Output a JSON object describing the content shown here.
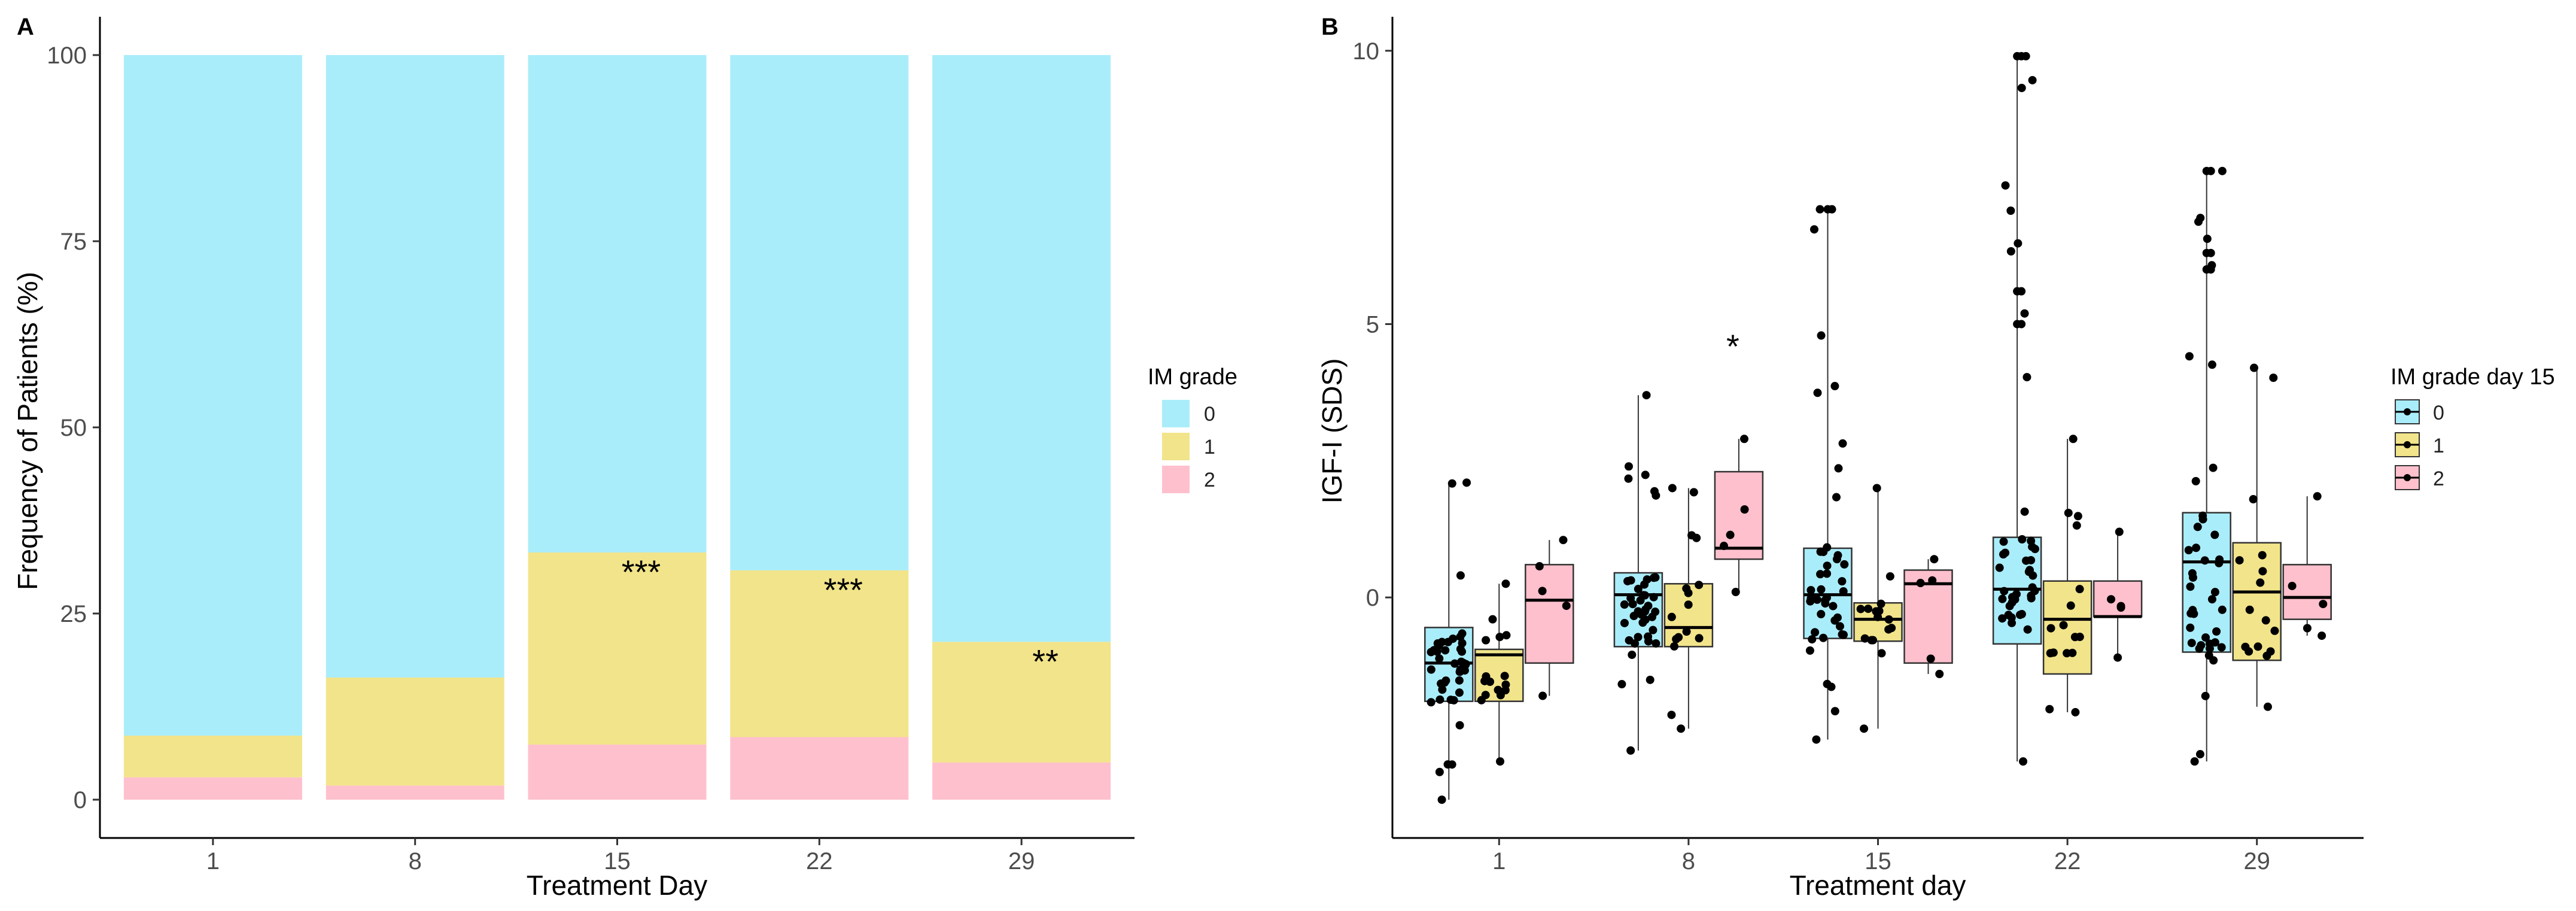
{
  "colors": {
    "grade0": "#aaedfa",
    "grade1": "#f2e48a",
    "grade2": "#ffc0cd",
    "point": "#000000"
  },
  "chart_data": [
    {
      "panel": "A",
      "type": "bar",
      "stacked": true,
      "xlabel": "Treatment Day",
      "ylabel": "Frequency of Patients (%)",
      "ylim": [
        0,
        100
      ],
      "yticks": [
        "0",
        "25",
        "50",
        "75",
        "100"
      ],
      "categories": [
        "1",
        "8",
        "15",
        "22",
        "29"
      ],
      "legend_title": "IM grade",
      "series": [
        {
          "name": "0",
          "values": [
            91.4,
            83.6,
            66.8,
            69.2,
            78.8
          ]
        },
        {
          "name": "1",
          "values": [
            5.6,
            14.5,
            25.8,
            22.4,
            16.2
          ]
        },
        {
          "name": "2",
          "values": [
            3.0,
            1.9,
            7.4,
            8.4,
            5.0
          ]
        }
      ],
      "annotations": [
        "",
        "",
        "***",
        "***",
        "**"
      ]
    },
    {
      "panel": "B",
      "type": "boxplot",
      "xlabel": "Treatment day",
      "ylabel": "IGF-I (SDS)",
      "ylim": [
        -4.4,
        10.6
      ],
      "yticks": [
        "0",
        "5",
        "10"
      ],
      "categories": [
        "1",
        "8",
        "15",
        "22",
        "29"
      ],
      "legend_title": "IM grade day 15",
      "groups": [
        "0",
        "1",
        "2"
      ],
      "boxes": [
        {
          "day": "1",
          "group": "0",
          "q1": -1.9,
          "median": -1.2,
          "q3": -0.55,
          "min": -3.7,
          "max": 2.1
        },
        {
          "day": "1",
          "group": "1",
          "q1": -1.9,
          "median": -1.05,
          "q3": -0.95,
          "min": -3.0,
          "max": 0.25
        },
        {
          "day": "1",
          "group": "2",
          "q1": -1.2,
          "median": -0.05,
          "q3": 0.6,
          "min": -1.8,
          "max": 1.05
        },
        {
          "day": "8",
          "group": "0",
          "q1": -0.9,
          "median": 0.05,
          "q3": 0.45,
          "min": -2.8,
          "max": 3.7
        },
        {
          "day": "8",
          "group": "1",
          "q1": -0.9,
          "median": -0.55,
          "q3": 0.25,
          "min": -2.4,
          "max": 2.0
        },
        {
          "day": "8",
          "group": "2",
          "q1": 0.7,
          "median": 0.9,
          "q3": 2.3,
          "min": 0.1,
          "max": 2.9
        },
        {
          "day": "15",
          "group": "0",
          "q1": -0.75,
          "median": 0.05,
          "q3": 0.9,
          "min": -2.6,
          "max": 7.1
        },
        {
          "day": "15",
          "group": "1",
          "q1": -0.8,
          "median": -0.4,
          "q3": -0.1,
          "min": -2.4,
          "max": 2.0
        },
        {
          "day": "15",
          "group": "2",
          "q1": -1.2,
          "median": 0.25,
          "q3": 0.5,
          "min": -1.4,
          "max": 0.7
        },
        {
          "day": "22",
          "group": "0",
          "q1": -0.85,
          "median": 0.15,
          "q3": 1.1,
          "min": -3.0,
          "max": 9.9
        },
        {
          "day": "22",
          "group": "1",
          "q1": -1.4,
          "median": -0.4,
          "q3": 0.3,
          "min": -2.1,
          "max": 2.9
        },
        {
          "day": "22",
          "group": "2",
          "q1": -0.35,
          "median": -0.35,
          "q3": 0.3,
          "min": -1.1,
          "max": 1.2
        },
        {
          "day": "29",
          "group": "0",
          "q1": -1.0,
          "median": 0.65,
          "q3": 1.55,
          "min": -3.0,
          "max": 7.8
        },
        {
          "day": "29",
          "group": "1",
          "q1": -1.15,
          "median": 0.1,
          "q3": 1.0,
          "min": -2.0,
          "max": 4.2
        },
        {
          "day": "29",
          "group": "2",
          "q1": -0.4,
          "median": 0.0,
          "q3": 0.6,
          "min": -0.7,
          "max": 1.85
        }
      ],
      "outliers": [
        {
          "day": "15",
          "group": "0",
          "y": 7.1
        },
        {
          "day": "22",
          "group": "0",
          "y": 9.9
        },
        {
          "day": "22",
          "group": "0",
          "y": 5.6
        },
        {
          "day": "22",
          "group": "0",
          "y": 5.0
        },
        {
          "day": "29",
          "group": "0",
          "y": 7.8
        },
        {
          "day": "29",
          "group": "0",
          "y": 6.3
        },
        {
          "day": "29",
          "group": "0",
          "y": 6.0
        }
      ],
      "annotations": [
        {
          "day": "8",
          "text": "*"
        }
      ]
    }
  ]
}
